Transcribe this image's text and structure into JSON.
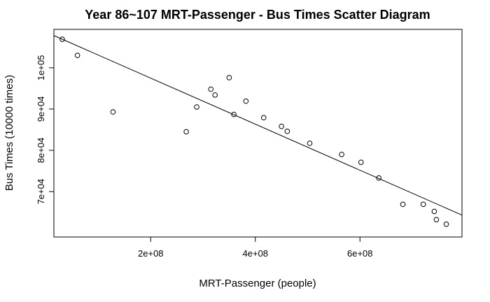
{
  "chart_data": {
    "type": "scatter",
    "title": "Year 86~107 MRT-Passenger  -  Bus Times Scatter Diagram",
    "xlabel": "MRT-Passenger (people)",
    "ylabel": "Bus Times (10000 times)",
    "xlim": [
      15000000,
      795000000
    ],
    "ylim": [
      59000,
      109300
    ],
    "x_ticks": [
      {
        "value": 200000000,
        "label": "2e+08"
      },
      {
        "value": 400000000,
        "label": "4e+08"
      },
      {
        "value": 600000000,
        "label": "6e+08"
      }
    ],
    "y_ticks": [
      {
        "value": 70000,
        "label": "7e+04"
      },
      {
        "value": 80000,
        "label": "8e+04"
      },
      {
        "value": 90000,
        "label": "9e+04"
      },
      {
        "value": 100000,
        "label": "1e+05"
      }
    ],
    "points": [
      {
        "x": 31000000,
        "y": 106900
      },
      {
        "x": 60000000,
        "y": 103000
      },
      {
        "x": 128000000,
        "y": 89300
      },
      {
        "x": 268000000,
        "y": 84500
      },
      {
        "x": 288000000,
        "y": 90500
      },
      {
        "x": 315000000,
        "y": 94800
      },
      {
        "x": 323000000,
        "y": 93400
      },
      {
        "x": 350000000,
        "y": 97600
      },
      {
        "x": 359000000,
        "y": 88700
      },
      {
        "x": 382000000,
        "y": 91900
      },
      {
        "x": 416000000,
        "y": 87900
      },
      {
        "x": 450000000,
        "y": 85800
      },
      {
        "x": 461000000,
        "y": 84600
      },
      {
        "x": 504000000,
        "y": 81700
      },
      {
        "x": 565000000,
        "y": 79000
      },
      {
        "x": 602000000,
        "y": 77100
      },
      {
        "x": 636000000,
        "y": 73300
      },
      {
        "x": 682000000,
        "y": 66900
      },
      {
        "x": 721000000,
        "y": 66900
      },
      {
        "x": 742000000,
        "y": 65200
      },
      {
        "x": 746000000,
        "y": 63200
      },
      {
        "x": 765000000,
        "y": 62100
      }
    ],
    "regression_line": {
      "x1": 15000000,
      "y1": 107800,
      "x2": 795000000,
      "y2": 64300
    },
    "grid": false,
    "legend": "none",
    "marker": "open-circle"
  }
}
